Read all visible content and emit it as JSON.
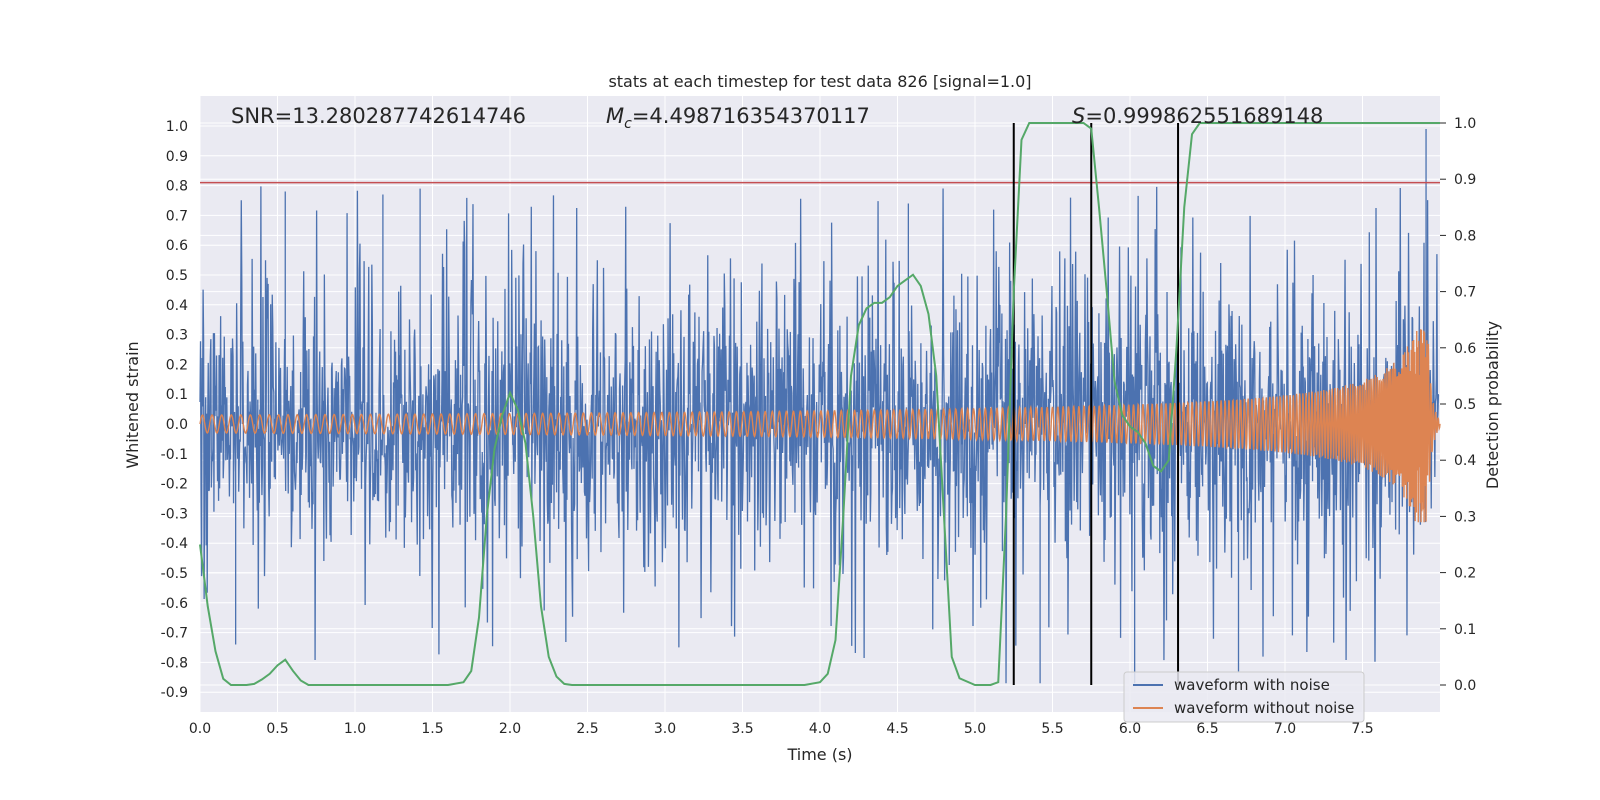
{
  "chart_data": {
    "type": "line",
    "title": "stats at each timestep for test data 826 [signal=1.0]",
    "xlabel": "Time (s)",
    "ylabel": "Whitened strain",
    "y2label": "Detection probability",
    "xlim": [
      0.0,
      8.0
    ],
    "ylim": [
      -0.96,
      1.08
    ],
    "y2lim": [
      -0.045,
      1.045
    ],
    "xticks": [
      "0.0",
      "0.5",
      "1.0",
      "1.5",
      "2.0",
      "2.5",
      "3.0",
      "3.5",
      "4.0",
      "4.5",
      "5.0",
      "5.5",
      "6.0",
      "6.5",
      "7.0",
      "7.5"
    ],
    "yticks": [
      "1.0",
      "0.9",
      "0.8",
      "0.7",
      "0.6",
      "0.5",
      "0.4",
      "0.3",
      "0.2",
      "0.1",
      "0.0",
      "-0.1",
      "-0.2",
      "-0.3",
      "-0.4",
      "-0.5",
      "-0.6",
      "-0.7",
      "-0.8",
      "-0.9"
    ],
    "y2ticks": [
      "1.0",
      "0.9",
      "0.8",
      "0.7",
      "0.6",
      "0.5",
      "0.4",
      "0.3",
      "0.2",
      "0.1",
      "0.0"
    ],
    "grid": true,
    "legend_position": "lower right",
    "annotations": {
      "snr": "SNR=13.280287742614746",
      "mc_symbol": "M",
      "mc_sub": "c",
      "mc_value": "=4.498716354370117",
      "s_symbol": "S",
      "s_value": "=0.999862551689148"
    },
    "threshold_line": {
      "y": 0.81,
      "color": "#c44e52"
    },
    "vertical_lines": [
      {
        "x": 5.25
      },
      {
        "x": 5.75
      },
      {
        "x": 6.31
      }
    ],
    "series": [
      {
        "name": "waveform with noise",
        "color": "#4c72b0",
        "type": "noise",
        "typical_range": [
          -0.45,
          0.45
        ],
        "extreme_range": [
          -0.87,
          0.99
        ]
      },
      {
        "name": "waveform without noise",
        "color": "#dd8452",
        "type": "chirp",
        "envelope_start": 0.03,
        "peak_time": 7.92,
        "peak_amplitude": 0.33,
        "end_time": 8.0
      },
      {
        "name": "Detection probability",
        "color": "#55a868",
        "axis": "right",
        "x": [
          0.0,
          0.05,
          0.1,
          0.15,
          0.2,
          0.3,
          0.35,
          0.4,
          0.45,
          0.5,
          0.55,
          0.6,
          0.65,
          0.7,
          0.8,
          1.0,
          1.2,
          1.4,
          1.6,
          1.7,
          1.75,
          1.8,
          1.85,
          1.9,
          1.95,
          2.0,
          2.05,
          2.1,
          2.15,
          2.2,
          2.25,
          2.3,
          2.35,
          2.4,
          2.5,
          3.0,
          3.5,
          3.9,
          4.0,
          4.05,
          4.1,
          4.15,
          4.2,
          4.25,
          4.3,
          4.35,
          4.4,
          4.45,
          4.5,
          4.55,
          4.6,
          4.65,
          4.7,
          4.75,
          4.8,
          4.85,
          4.9,
          5.0,
          5.1,
          5.15,
          5.2,
          5.25,
          5.3,
          5.35,
          5.4,
          5.5,
          5.6,
          5.65,
          5.7,
          5.75,
          5.8,
          5.85,
          5.9,
          5.95,
          6.0,
          6.05,
          6.1,
          6.15,
          6.2,
          6.25,
          6.3,
          6.35,
          6.4,
          6.45,
          6.5,
          7.0,
          7.5,
          8.0
        ],
        "values": [
          0.25,
          0.14,
          0.06,
          0.011,
          0.0,
          0.0,
          0.002,
          0.01,
          0.02,
          0.035,
          0.045,
          0.025,
          0.008,
          0.0,
          0.0,
          0.0,
          0.0,
          0.0,
          0.0,
          0.005,
          0.025,
          0.12,
          0.3,
          0.42,
          0.48,
          0.52,
          0.49,
          0.43,
          0.3,
          0.14,
          0.05,
          0.015,
          0.002,
          0.0,
          0.0,
          0.0,
          0.0,
          0.0,
          0.005,
          0.02,
          0.08,
          0.3,
          0.55,
          0.64,
          0.67,
          0.68,
          0.68,
          0.69,
          0.71,
          0.72,
          0.73,
          0.71,
          0.66,
          0.55,
          0.3,
          0.05,
          0.012,
          0.0,
          0.0,
          0.005,
          0.3,
          0.7,
          0.97,
          1.0,
          1.0,
          1.0,
          1.0,
          1.0,
          1.0,
          0.99,
          0.85,
          0.7,
          0.54,
          0.48,
          0.46,
          0.45,
          0.43,
          0.39,
          0.38,
          0.4,
          0.6,
          0.85,
          0.98,
          1.0,
          1.0,
          1.0,
          1.0,
          1.0
        ]
      }
    ]
  }
}
